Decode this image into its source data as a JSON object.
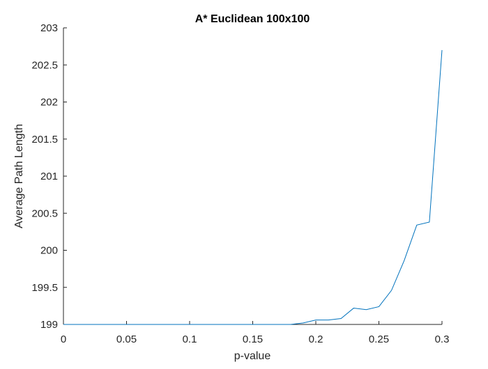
{
  "chart_data": {
    "type": "line",
    "title": "A* Euclidean 100x100",
    "xlabel": "p-value",
    "ylabel": "Average Path Length",
    "xlim": [
      0,
      0.3
    ],
    "ylim": [
      199,
      203
    ],
    "xticks": [
      0,
      0.05,
      0.1,
      0.15,
      0.2,
      0.25,
      0.3
    ],
    "xtick_labels": [
      "0",
      "0.05",
      "0.1",
      "0.15",
      "0.2",
      "0.25",
      "0.3"
    ],
    "yticks": [
      199,
      199.5,
      200,
      200.5,
      201,
      201.5,
      202,
      202.5,
      203
    ],
    "ytick_labels": [
      "199",
      "199.5",
      "200",
      "200.5",
      "201",
      "201.5",
      "202",
      "202.5",
      "203"
    ],
    "grid": false,
    "series": [
      {
        "color": "#0072BD",
        "x": [
          0,
          0.01,
          0.02,
          0.03,
          0.04,
          0.05,
          0.06,
          0.07,
          0.08,
          0.09,
          0.1,
          0.11,
          0.12,
          0.13,
          0.14,
          0.15,
          0.16,
          0.17,
          0.18,
          0.19,
          0.2,
          0.21,
          0.22,
          0.23,
          0.24,
          0.25,
          0.26,
          0.27,
          0.28,
          0.29,
          0.3
        ],
        "y": [
          199,
          199,
          199,
          199,
          199,
          199,
          199,
          199,
          199,
          199,
          199,
          199,
          199,
          199,
          199,
          199,
          199,
          199,
          199,
          199.02,
          199.06,
          199.06,
          199.08,
          199.22,
          199.2,
          199.24,
          199.46,
          199.86,
          200.34,
          200.38,
          202.7
        ]
      }
    ]
  }
}
